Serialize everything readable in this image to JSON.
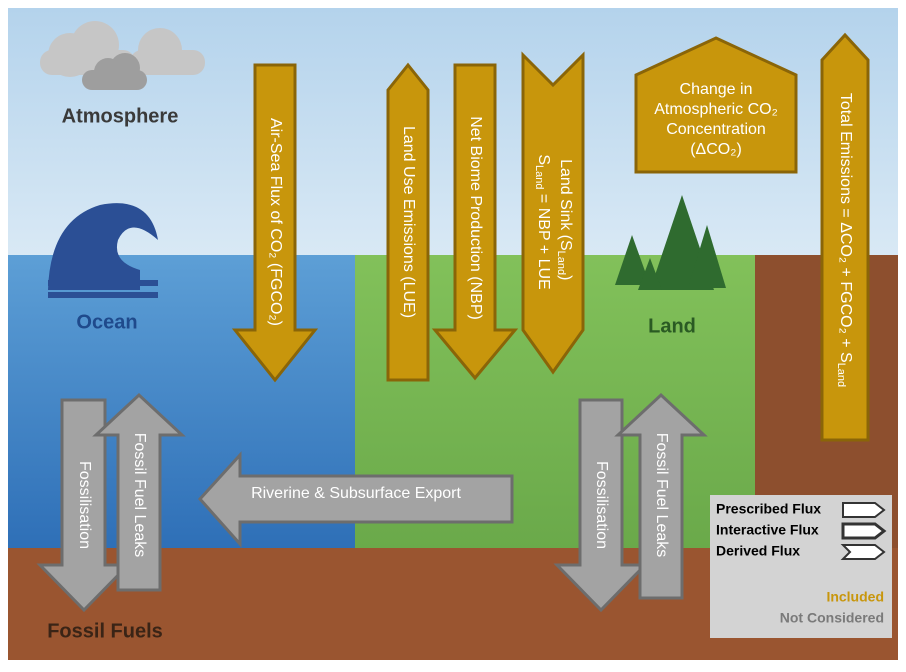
{
  "regions": {
    "atmosphere": "Atmosphere",
    "ocean": "Ocean",
    "land": "Land",
    "fossil_fuels": "Fossil Fuels"
  },
  "fluxes": {
    "air_sea": "Air-Sea Flux of CO₂ (FGCO₂)",
    "land_use": "Land Use Emissions (LUE)",
    "nbp": "Net Biome Production (NBP)",
    "land_sink": {
      "line1": [
        "Land Sink (S",
        "Land",
        ")"
      ],
      "line2": [
        "S",
        "Land",
        " = NBP + LUE"
      ]
    },
    "delta_co2": [
      "Change in",
      "Atmospheric CO₂",
      "Concentration",
      "(ΔCO₂)"
    ],
    "total": [
      "Total Emissions = ΔCO₂ + FGCO₂ + S",
      "Land"
    ],
    "ocean_fossilisation": "Fossilisation",
    "ocean_leaks": "Fossil Fuel Leaks",
    "riverine": "Riverine & Subsurface Export",
    "land_fossilisation": "Fossilisation",
    "land_leaks": "Fossil Fuel Leaks"
  },
  "legend": {
    "prescribed": "Prescribed Flux",
    "interactive": "Interactive Flux",
    "derived": "Derived Flux",
    "included": "Included",
    "not_considered": "Not Considered"
  }
}
